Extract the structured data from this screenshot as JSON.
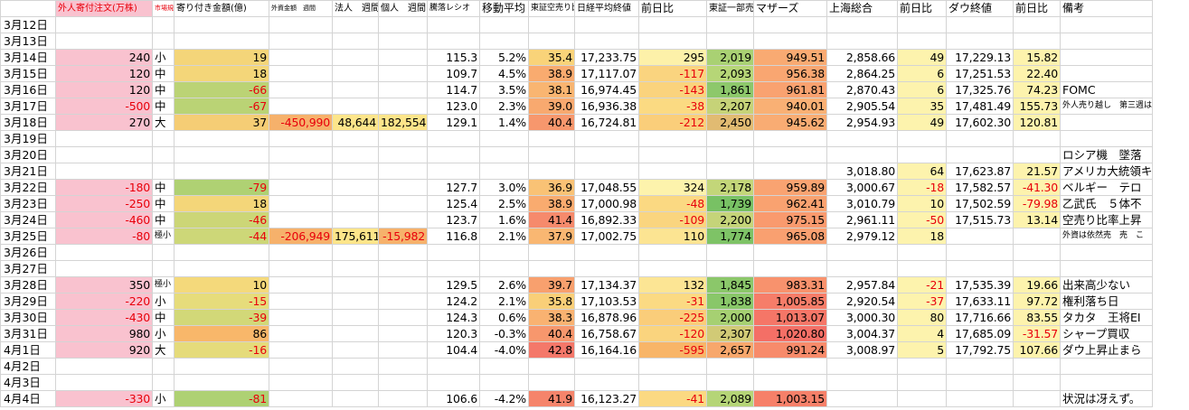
{
  "header": [
    {
      "label": "外人寄付注文(万株)",
      "size": "mid",
      "red": true,
      "pink": true
    },
    {
      "label": "市場規模",
      "size": "tiny",
      "red": true
    },
    {
      "label": "寄り付き金額(億)",
      "size": "mid"
    },
    {
      "label": "外資金額　週間",
      "size": "tiny"
    },
    {
      "label": "法人　週間",
      "size": "mid"
    },
    {
      "label": "個人　週間",
      "size": "mid"
    },
    {
      "label": "騰落レシオ",
      "size": "small"
    },
    {
      "label": "移動平均",
      "size": "normal"
    },
    {
      "label": "東証空売り比率",
      "size": "small"
    },
    {
      "label": "日経平均終値",
      "size": "mid"
    },
    {
      "label": "前日比",
      "size": "normal"
    },
    {
      "label": "東証一部売買",
      "size": "mid"
    },
    {
      "label": "マザーズ",
      "size": "normal"
    },
    {
      "label": "上海総合",
      "size": "normal"
    },
    {
      "label": "前日比",
      "size": "normal"
    },
    {
      "label": "ダウ終値",
      "size": "normal"
    },
    {
      "label": "前日比",
      "size": "normal"
    },
    {
      "label": "備考",
      "size": "normal"
    }
  ],
  "rows": [
    {
      "date": "3月12日"
    },
    {
      "date": "3月13日"
    },
    {
      "date": "3月14日",
      "foreign_orders": "240",
      "market_size": "小",
      "open_amount": "19",
      "adr": "115.3",
      "ma": "5.2%",
      "short_ratio": "35.4",
      "nikkei": "17,233.75",
      "nikkei_chg": "295",
      "tse_volume": "2,019",
      "mothers": "949.51",
      "shanghai": "2,858.66",
      "shanghai_chg": "49",
      "dow": "17,229.13",
      "dow_chg": "15.82"
    },
    {
      "date": "3月15日",
      "foreign_orders": "120",
      "market_size": "中",
      "open_amount": "18",
      "adr": "109.7",
      "ma": "4.5%",
      "short_ratio": "38.9",
      "nikkei": "17,117.07",
      "nikkei_chg": "-117",
      "tse_volume": "2,093",
      "mothers": "956.38",
      "shanghai": "2,864.25",
      "shanghai_chg": "6",
      "dow": "17,251.53",
      "dow_chg": "22.40"
    },
    {
      "date": "3月16日",
      "foreign_orders": "120",
      "market_size": "中",
      "open_amount": "-66",
      "adr": "114.7",
      "ma": "3.5%",
      "short_ratio": "38.1",
      "nikkei": "16,974.45",
      "nikkei_chg": "-143",
      "tse_volume": "1,861",
      "mothers": "961.81",
      "shanghai": "2,870.43",
      "shanghai_chg": "6",
      "dow": "17,325.76",
      "dow_chg": "74.23",
      "note": "FOMC"
    },
    {
      "date": "3月17日",
      "foreign_orders": "-500",
      "market_size": "中",
      "open_amount": "-67",
      "adr": "123.0",
      "ma": "2.3%",
      "short_ratio": "39.0",
      "nikkei": "16,936.38",
      "nikkei_chg": "-38",
      "tse_volume": "2,207",
      "mothers": "940.01",
      "shanghai": "2,905.54",
      "shanghai_chg": "35",
      "dow": "17,481.49",
      "dow_chg": "155.73",
      "note": "外人売り越し　第三週はプラ",
      "note_small": true
    },
    {
      "date": "3月18日",
      "foreign_orders": "270",
      "market_size": "大",
      "open_amount": "37",
      "foreign_weekly": "-450,990",
      "corp_weekly": "48,644",
      "indiv_weekly": "182,554",
      "adr": "129.1",
      "ma": "1.4%",
      "short_ratio": "40.4",
      "nikkei": "16,724.81",
      "nikkei_chg": "-212",
      "tse_volume": "2,450",
      "mothers": "945.62",
      "shanghai": "2,954.93",
      "shanghai_chg": "49",
      "dow": "17,602.30",
      "dow_chg": "120.81"
    },
    {
      "date": "3月19日"
    },
    {
      "date": "3月20日",
      "note": "ロシア機　墜落"
    },
    {
      "date": "3月21日",
      "shanghai": "3,018.80",
      "shanghai_chg": "64",
      "dow": "17,623.87",
      "dow_chg": "21.57",
      "note": "アメリカ大統領キ"
    },
    {
      "date": "3月22日",
      "foreign_orders": "-180",
      "market_size": "中",
      "open_amount": "-79",
      "adr": "127.7",
      "ma": "3.0%",
      "short_ratio": "36.9",
      "nikkei": "17,048.55",
      "nikkei_chg": "324",
      "tse_volume": "2,178",
      "mothers": "959.89",
      "shanghai": "3,000.67",
      "shanghai_chg": "-18",
      "dow": "17,582.57",
      "dow_chg": "-41.30",
      "note": "ベルギー　テロ"
    },
    {
      "date": "3月23日",
      "foreign_orders": "-250",
      "market_size": "中",
      "open_amount": "18",
      "adr": "125.4",
      "ma": "2.5%",
      "short_ratio": "38.9",
      "nikkei": "17,000.98",
      "nikkei_chg": "-48",
      "tse_volume": "1,739",
      "mothers": "962.41",
      "shanghai": "3,010.79",
      "shanghai_chg": "10",
      "dow": "17,502.59",
      "dow_chg": "-79.98",
      "note": "乙武氏　５体不"
    },
    {
      "date": "3月24日",
      "foreign_orders": "-460",
      "market_size": "中",
      "open_amount": "-46",
      "adr": "123.7",
      "ma": "1.6%",
      "short_ratio": "41.4",
      "nikkei": "16,892.33",
      "nikkei_chg": "-109",
      "tse_volume": "2,200",
      "mothers": "975.15",
      "shanghai": "2,961.11",
      "shanghai_chg": "-50",
      "dow": "17,515.73",
      "dow_chg": "13.14",
      "note": "空売り比率上昇"
    },
    {
      "date": "3月25日",
      "foreign_orders": "-80",
      "market_size": "極小",
      "market_size_small": true,
      "open_amount": "-44",
      "foreign_weekly": "-206,949",
      "corp_weekly": "175,611",
      "indiv_weekly": "-15,982",
      "adr": "116.8",
      "ma": "2.1%",
      "short_ratio": "37.9",
      "nikkei": "17,002.75",
      "nikkei_chg": "110",
      "tse_volume": "1,774",
      "mothers": "965.08",
      "shanghai": "2,979.12",
      "shanghai_chg": "18",
      "note": "外資は依然売　売　こ",
      "note_small": true
    },
    {
      "date": "3月26日"
    },
    {
      "date": "3月27日"
    },
    {
      "date": "3月28日",
      "foreign_orders": "350",
      "market_size": "極小",
      "market_size_small": true,
      "open_amount": "10",
      "adr": "129.5",
      "ma": "2.6%",
      "short_ratio": "39.7",
      "nikkei": "17,134.37",
      "nikkei_chg": "132",
      "tse_volume": "1,845",
      "mothers": "983.31",
      "shanghai": "2,957.84",
      "shanghai_chg": "-21",
      "dow": "17,535.39",
      "dow_chg": "19.66",
      "note": "出来高少ない"
    },
    {
      "date": "3月29日",
      "foreign_orders": "-220",
      "market_size": "小",
      "open_amount": "-15",
      "adr": "124.2",
      "ma": "2.1%",
      "short_ratio": "35.8",
      "nikkei": "17,103.53",
      "nikkei_chg": "-31",
      "tse_volume": "1,838",
      "mothers": "1,005.85",
      "shanghai": "2,920.54",
      "shanghai_chg": "-37",
      "dow": "17,633.11",
      "dow_chg": "97.72",
      "note": "権利落ち日"
    },
    {
      "date": "3月30日",
      "foreign_orders": "-430",
      "market_size": "中",
      "open_amount": "-39",
      "adr": "124.3",
      "ma": "0.6%",
      "short_ratio": "38.3",
      "nikkei": "16,878.96",
      "nikkei_chg": "-225",
      "tse_volume": "2,000",
      "mothers": "1,013.07",
      "shanghai": "3,000.30",
      "shanghai_chg": "80",
      "dow": "17,716.66",
      "dow_chg": "83.55",
      "note": "タカタ　王将EI"
    },
    {
      "date": "3月31日",
      "foreign_orders": "980",
      "market_size": "小",
      "open_amount": "86",
      "adr": "120.3",
      "ma": "-0.3%",
      "short_ratio": "40.4",
      "nikkei": "16,758.67",
      "nikkei_chg": "-120",
      "tse_volume": "2,307",
      "mothers": "1,020.80",
      "shanghai": "3,004.37",
      "shanghai_chg": "4",
      "dow": "17,685.09",
      "dow_chg": "-31.57",
      "note": "シャープ買収"
    },
    {
      "date": "4月1日",
      "foreign_orders": "920",
      "market_size": "大",
      "open_amount": "-16",
      "adr": "104.4",
      "ma": "-4.0%",
      "short_ratio": "42.8",
      "nikkei": "16,164.16",
      "nikkei_chg": "-595",
      "tse_volume": "2,657",
      "mothers": "991.24",
      "shanghai": "3,008.97",
      "shanghai_chg": "5",
      "dow": "17,792.75",
      "dow_chg": "107.66",
      "note": "ダウ上昇止まら"
    },
    {
      "date": "4月2日"
    },
    {
      "date": "4月3日"
    },
    {
      "date": "4月4日",
      "foreign_orders": "-330",
      "market_size": "小",
      "open_amount": "-81",
      "adr": "106.6",
      "ma": "-4.2%",
      "short_ratio": "41.9",
      "nikkei": "16,123.27",
      "nikkei_chg": "-41",
      "tse_volume": "2,089",
      "mothers": "1,003.15",
      "note": "状況は冴えず。"
    }
  ],
  "colors": {
    "pink": "#f9c2cf",
    "light_yellow": "#fdf3ad",
    "negative_text": "#e8000b",
    "gridline": "#d4d4d4"
  }
}
